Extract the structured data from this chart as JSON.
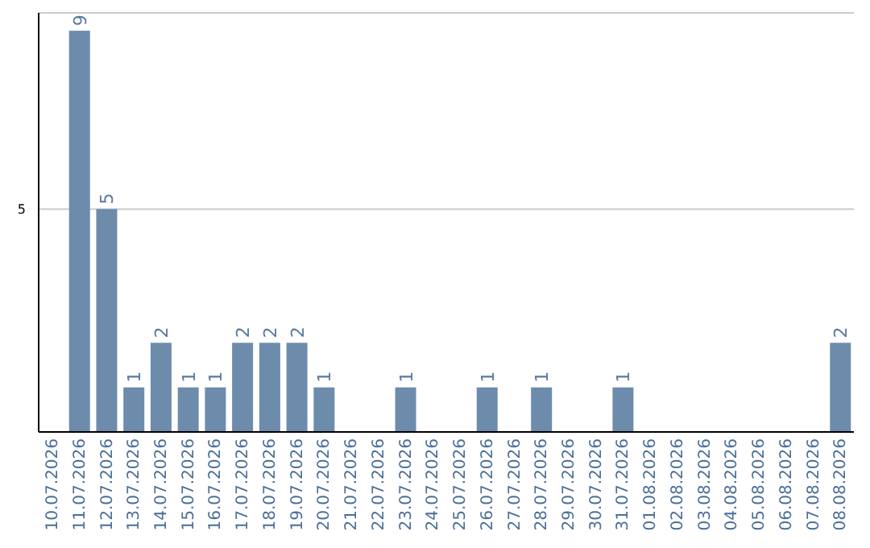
{
  "chart_data": {
    "type": "bar",
    "categories": [
      "10.07.2026",
      "11.07.2026",
      "12.07.2026",
      "13.07.2026",
      "14.07.2026",
      "15.07.2026",
      "16.07.2026",
      "17.07.2026",
      "18.07.2026",
      "19.07.2026",
      "20.07.2026",
      "21.07.2026",
      "22.07.2026",
      "23.07.2026",
      "24.07.2026",
      "25.07.2026",
      "26.07.2026",
      "27.07.2026",
      "28.07.2026",
      "29.07.2026",
      "30.07.2026",
      "31.07.2026",
      "01.08.2026",
      "02.08.2026",
      "03.08.2026",
      "04.08.2026",
      "05.08.2026",
      "06.08.2026",
      "07.08.2026",
      "08.08.2026"
    ],
    "values": [
      0,
      9,
      5,
      1,
      2,
      1,
      1,
      2,
      2,
      2,
      1,
      0,
      0,
      1,
      0,
      0,
      1,
      0,
      1,
      0,
      0,
      1,
      0,
      0,
      0,
      0,
      0,
      0,
      0,
      2
    ],
    "value_labels": [
      null,
      "9",
      "5",
      "1",
      "2",
      "1",
      "1",
      "2",
      "2",
      "2",
      "1",
      null,
      null,
      "1",
      null,
      null,
      "1",
      null,
      "1",
      null,
      null,
      "1",
      null,
      null,
      null,
      null,
      null,
      null,
      null,
      "2"
    ],
    "color": "#6d8cac",
    "ylim": [
      0,
      9.4
    ],
    "yticks": [
      5
    ],
    "grid": "y"
  }
}
